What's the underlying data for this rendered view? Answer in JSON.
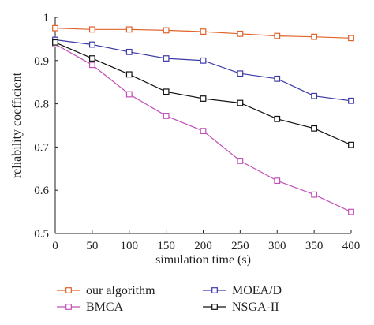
{
  "chart_data": {
    "type": "line",
    "title": "",
    "xlabel": "simulation time (s)",
    "ylabel": "reliability coefficient",
    "xlim": [
      0,
      400
    ],
    "ylim": [
      0.5,
      1.0
    ],
    "x_ticks": [
      "0",
      "50",
      "100",
      "150",
      "200",
      "250",
      "300",
      "350",
      "400"
    ],
    "y_ticks": [
      "0.5",
      "0.6",
      "0.7",
      "0.8",
      "0.9",
      "1"
    ],
    "x_tick_values": [
      0,
      50,
      100,
      150,
      200,
      250,
      300,
      350,
      400
    ],
    "y_tick_values": [
      0.5,
      0.6,
      0.7,
      0.8,
      0.9,
      1.0
    ],
    "grid": false,
    "legend_position": "bottom",
    "x": [
      0,
      50,
      100,
      150,
      200,
      250,
      300,
      350,
      400
    ],
    "series": [
      {
        "name": "our algorithm",
        "color": "#e0622a",
        "values": [
          0.975,
          0.972,
          0.972,
          0.97,
          0.967,
          0.962,
          0.957,
          0.955,
          0.952
        ]
      },
      {
        "name": "MOEA/D",
        "color": "#3b3aa6",
        "values": [
          0.948,
          0.937,
          0.92,
          0.905,
          0.9,
          0.87,
          0.858,
          0.818,
          0.807
        ]
      },
      {
        "name": "BMCA",
        "color": "#c24fb8",
        "values": [
          0.938,
          0.89,
          0.822,
          0.772,
          0.737,
          0.668,
          0.622,
          0.59,
          0.55
        ]
      },
      {
        "name": "NSGA-II",
        "color": "#111111",
        "values": [
          0.942,
          0.905,
          0.868,
          0.828,
          0.812,
          0.802,
          0.765,
          0.743,
          0.705
        ]
      }
    ]
  }
}
